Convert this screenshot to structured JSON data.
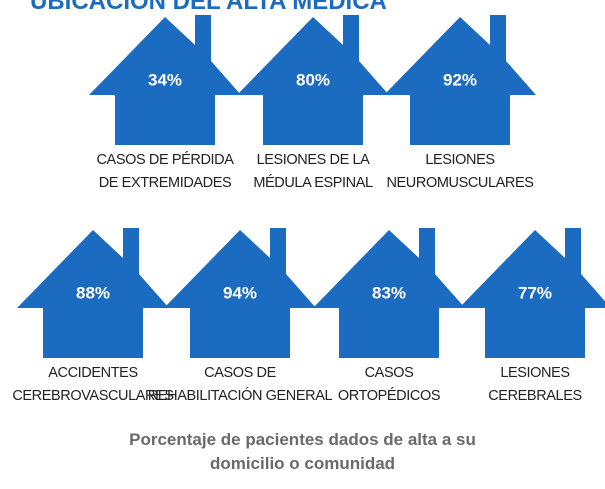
{
  "chart_data": {
    "type": "pictograph",
    "title": "UBICACIÓN DEL ALTA MÉDICA",
    "categories": [
      "CASOS DE PÉRDIDA\nDE EXTREMIDADES",
      "LESIONES DE LA\nMÉDULA ESPINAL",
      "LESIONES\nNEUROMUSCULARES",
      "ACCIDENTES\nCEREBROVASCULARES",
      "CASOS DE\nREHABILITACIÓN GENERAL",
      "CASOS\nORTOPÉDICOS",
      "LESIONES\nCEREBRALES"
    ],
    "values": [
      34,
      80,
      92,
      88,
      94,
      83,
      77
    ],
    "value_labels": [
      "34%",
      "80%",
      "92%",
      "88%",
      "94%",
      "83%",
      "77%"
    ],
    "color": "#1b6cc0",
    "caption": "Porcentaje de pacientes dados de alta a su domicilio o comunidad"
  }
}
